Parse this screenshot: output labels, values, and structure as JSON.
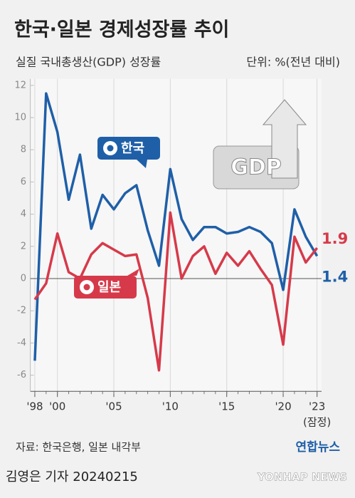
{
  "chart_data": {
    "type": "line",
    "title": "한국·일본 경제성장률 추이",
    "subtitle": "실질 국내총생산(GDP) 성장률",
    "unit": "단위: %(전년 대비)",
    "x": [
      1998,
      1999,
      2000,
      2001,
      2002,
      2003,
      2004,
      2005,
      2006,
      2007,
      2008,
      2009,
      2010,
      2011,
      2012,
      2013,
      2014,
      2015,
      2016,
      2017,
      2018,
      2019,
      2020,
      2021,
      2022,
      2023
    ],
    "series": [
      {
        "name": "한국",
        "color": "#1f5fa8",
        "values": [
          -5.1,
          11.5,
          9.1,
          4.9,
          7.7,
          3.1,
          5.2,
          4.3,
          5.3,
          5.8,
          3.0,
          0.8,
          6.8,
          3.7,
          2.4,
          3.2,
          3.2,
          2.8,
          2.9,
          3.2,
          2.9,
          2.2,
          -0.7,
          4.3,
          2.6,
          1.4
        ]
      },
      {
        "name": "일본",
        "color": "#d63a4a",
        "values": [
          -1.3,
          -0.3,
          2.8,
          0.4,
          0.0,
          1.5,
          2.2,
          1.8,
          1.4,
          1.5,
          -1.2,
          -5.7,
          4.1,
          0.0,
          1.4,
          2.0,
          0.3,
          1.6,
          0.8,
          1.7,
          0.6,
          -0.4,
          -4.1,
          2.6,
          1.0,
          1.9
        ]
      }
    ],
    "xlim": [
      1997.6,
      2023.4
    ],
    "xticks": [
      {
        "value": 1998,
        "label": "'98"
      },
      {
        "value": 2000,
        "label": "'00"
      },
      {
        "value": 2005,
        "label": "'05"
      },
      {
        "value": 2010,
        "label": "'10"
      },
      {
        "value": 2015,
        "label": "'15"
      },
      {
        "value": 2020,
        "label": "'20"
      },
      {
        "value": 2023,
        "label": "'23"
      }
    ],
    "xtick_note": "(잠정)",
    "ylim": [
      -7,
      12.4
    ],
    "yticks": [
      -6,
      -4,
      -2,
      0,
      2,
      4,
      6,
      8,
      10,
      12
    ],
    "grid": true,
    "source": "자료: 한국은행, 일본 내각부",
    "logo": "연합뉴스",
    "byline": "김영은 기자  20240215",
    "watermark": "YONHAP NEWS",
    "image_text": "GDP"
  }
}
